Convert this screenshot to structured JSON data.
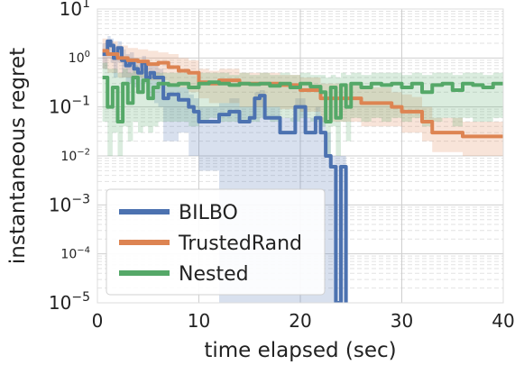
{
  "chart_data": {
    "type": "line",
    "title": "",
    "xlabel": "time elapsed (sec)",
    "ylabel": "instantaneous regret",
    "xlim": [
      0,
      40
    ],
    "ylim": [
      1e-05,
      10
    ],
    "yscale": "log",
    "grid": true,
    "xticks": [
      "0",
      "10",
      "20",
      "30",
      "40"
    ],
    "yticks_major": [
      {
        "value": 10,
        "label": "10",
        "exp": "1"
      },
      {
        "value": 0.1,
        "label": "10",
        "exp": "−1"
      },
      {
        "value": 0.001,
        "label": "10",
        "exp": "−3"
      },
      {
        "value": 1e-05,
        "label": "10",
        "exp": "−5"
      }
    ],
    "yticks_minor": [
      {
        "value": 1,
        "label": "10",
        "exp": "0"
      },
      {
        "value": 0.01,
        "label": "10",
        "exp": "−2"
      },
      {
        "value": 0.0001,
        "label": "10",
        "exp": "−4"
      }
    ],
    "legend_position": "lower-left",
    "series": [
      {
        "name": "BILBO",
        "color": "#4c72b0",
        "x": [
          0.5,
          1.0,
          1.3,
          1.6,
          2.0,
          2.4,
          2.8,
          3.2,
          3.6,
          4.0,
          4.4,
          4.8,
          5.2,
          5.6,
          6.0,
          6.5,
          7.0,
          8.0,
          9.0,
          9.5,
          10.0,
          11.0,
          12.0,
          13.0,
          14.0,
          15.0,
          15.5,
          16.0,
          16.5,
          17.0,
          18.0,
          19.0,
          19.5,
          20.0,
          20.5,
          21.0,
          21.5,
          22.0,
          22.5,
          23.0,
          23.5,
          24.0,
          24.5
        ],
        "values": [
          1.2,
          2.2,
          1.8,
          1.0,
          1.6,
          0.9,
          0.7,
          0.8,
          0.6,
          0.5,
          0.8,
          0.4,
          0.5,
          0.4,
          0.4,
          0.15,
          0.18,
          0.14,
          0.1,
          0.08,
          0.05,
          0.05,
          0.07,
          0.08,
          0.05,
          0.06,
          0.15,
          0.17,
          0.06,
          0.06,
          0.03,
          0.03,
          0.1,
          0.1,
          0.03,
          0.03,
          0.06,
          0.03,
          0.01,
          0.006,
          1e-05,
          0.006,
          1e-05
        ],
        "band_upper": [
          2.0,
          2.8,
          2.5,
          1.8,
          2.2,
          1.5,
          1.2,
          1.3,
          1.0,
          0.9,
          1.1,
          0.8,
          0.8,
          0.7,
          0.6,
          0.3,
          0.3,
          0.25,
          0.18,
          0.15,
          0.1,
          0.1,
          0.12,
          0.15,
          0.1,
          0.1,
          0.2,
          0.22,
          0.1,
          0.1,
          0.06,
          0.06,
          0.15,
          0.15,
          0.06,
          0.06,
          0.1,
          0.06,
          0.03,
          0.01,
          0.01,
          0.01,
          0.01
        ],
        "band_lower": [
          0.6,
          1.0,
          0.8,
          0.4,
          0.8,
          0.4,
          0.3,
          0.3,
          0.25,
          0.2,
          0.3,
          0.15,
          0.15,
          0.12,
          0.1,
          0.02,
          0.02,
          0.03,
          0.01,
          0.01,
          0.005,
          0.005,
          1e-05,
          1e-05,
          1e-05,
          1e-05,
          1e-05,
          1e-05,
          1e-05,
          1e-05,
          1e-05,
          1e-05,
          1e-05,
          1e-05,
          1e-05,
          1e-05,
          1e-05,
          1e-05,
          1e-05,
          1e-05,
          1e-05,
          1e-05,
          1e-05
        ]
      },
      {
        "name": "TrustedRand",
        "color": "#dd8452",
        "x": [
          0.5,
          1.0,
          2.0,
          3.0,
          4.0,
          5.0,
          6.0,
          7.0,
          8.0,
          9.0,
          10.0,
          11.0,
          12.0,
          14.0,
          16.0,
          18.0,
          20.0,
          22.0,
          24.0,
          26.0,
          28.0,
          29.0,
          30.0,
          31.0,
          32.0,
          33.0,
          34.0,
          35.0,
          36.0,
          38.0,
          40.0
        ],
        "values": [
          1.4,
          1.2,
          1.0,
          0.9,
          0.85,
          0.75,
          0.8,
          0.65,
          0.55,
          0.5,
          0.32,
          0.3,
          0.35,
          0.3,
          0.3,
          0.28,
          0.22,
          0.15,
          0.15,
          0.12,
          0.12,
          0.1,
          0.08,
          0.08,
          0.05,
          0.03,
          0.03,
          0.03,
          0.025,
          0.025,
          0.025
        ],
        "band_upper": [
          2.5,
          2.2,
          1.8,
          1.6,
          1.5,
          1.4,
          1.3,
          1.2,
          1.0,
          0.9,
          0.6,
          0.55,
          0.6,
          0.5,
          0.5,
          0.45,
          0.4,
          0.3,
          0.3,
          0.25,
          0.25,
          0.2,
          0.18,
          0.16,
          0.1,
          0.06,
          0.06,
          0.06,
          0.05,
          0.05,
          0.05
        ],
        "band_lower": [
          0.6,
          0.5,
          0.4,
          0.4,
          0.4,
          0.35,
          0.35,
          0.3,
          0.25,
          0.2,
          0.15,
          0.12,
          0.12,
          0.1,
          0.1,
          0.09,
          0.08,
          0.05,
          0.05,
          0.04,
          0.04,
          0.04,
          0.03,
          0.03,
          0.02,
          0.012,
          0.012,
          0.012,
          0.01,
          0.01,
          0.01
        ]
      },
      {
        "name": "Nested",
        "color": "#55a868",
        "x": [
          0.5,
          1.0,
          1.5,
          2.0,
          2.5,
          3.0,
          3.5,
          4.0,
          4.5,
          5.0,
          5.5,
          6.0,
          7.0,
          8.0,
          9.0,
          10.0,
          11.0,
          12.0,
          13.0,
          14.0,
          15.0,
          16.0,
          17.0,
          18.0,
          19.0,
          20.0,
          21.0,
          22.0,
          22.5,
          23.0,
          23.5,
          24.0,
          24.5,
          25.0,
          26.0,
          27.0,
          28.0,
          29.0,
          30.0,
          31.0,
          32.0,
          33.0,
          34.0,
          35.0,
          36.0,
          37.0,
          38.0,
          39.0,
          40.0
        ],
        "values": [
          0.4,
          0.1,
          0.25,
          0.05,
          0.3,
          0.12,
          0.4,
          0.2,
          0.35,
          0.15,
          0.25,
          0.3,
          0.28,
          0.3,
          0.25,
          0.3,
          0.32,
          0.3,
          0.28,
          0.3,
          0.29,
          0.3,
          0.27,
          0.3,
          0.25,
          0.3,
          0.26,
          0.2,
          0.05,
          0.25,
          0.06,
          0.28,
          0.1,
          0.3,
          0.25,
          0.3,
          0.28,
          0.3,
          0.25,
          0.3,
          0.2,
          0.28,
          0.3,
          0.22,
          0.3,
          0.28,
          0.25,
          0.3,
          0.28
        ],
        "band_upper": [
          0.8,
          0.6,
          0.6,
          0.5,
          0.6,
          0.5,
          0.7,
          0.5,
          0.6,
          0.4,
          0.5,
          0.5,
          0.5,
          0.5,
          0.45,
          0.5,
          0.5,
          0.5,
          0.45,
          0.5,
          0.45,
          0.5,
          0.45,
          0.5,
          0.45,
          0.5,
          0.45,
          0.45,
          0.4,
          0.45,
          0.4,
          0.5,
          0.45,
          0.5,
          0.45,
          0.5,
          0.5,
          0.5,
          0.45,
          0.5,
          0.45,
          0.5,
          0.5,
          0.45,
          0.5,
          0.5,
          0.45,
          0.5,
          0.5
        ],
        "band_lower": [
          0.05,
          0.01,
          0.03,
          0.01,
          0.04,
          0.02,
          0.05,
          0.03,
          0.04,
          0.03,
          0.04,
          0.05,
          0.05,
          0.05,
          0.04,
          0.05,
          0.06,
          0.05,
          0.05,
          0.05,
          0.05,
          0.06,
          0.05,
          0.06,
          0.05,
          0.06,
          0.05,
          0.04,
          0.01,
          0.04,
          0.01,
          0.05,
          0.02,
          0.06,
          0.05,
          0.06,
          0.05,
          0.06,
          0.05,
          0.06,
          0.04,
          0.05,
          0.06,
          0.04,
          0.06,
          0.05,
          0.05,
          0.06,
          0.05
        ]
      }
    ]
  }
}
